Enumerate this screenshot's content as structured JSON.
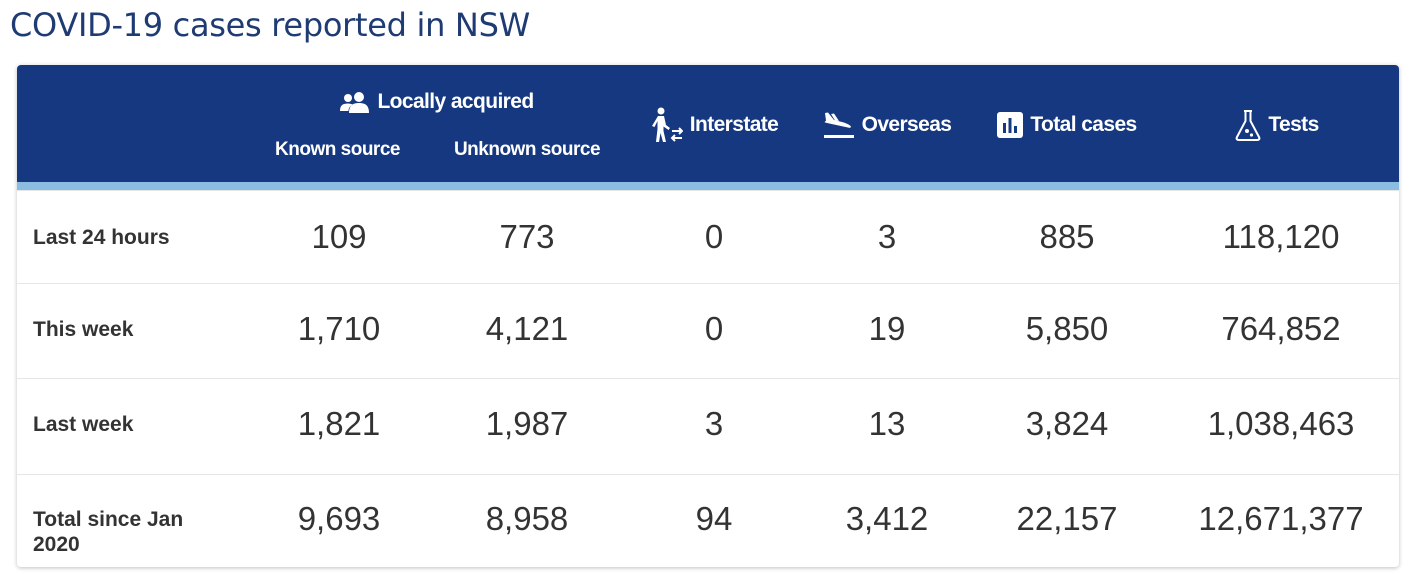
{
  "page": {
    "title": "COVID-19 cases reported in NSW"
  },
  "colors": {
    "header_bg": "#153880",
    "header_accent": "#8bbde3",
    "title": "#1f3b73"
  },
  "header": {
    "locally_acquired": {
      "label": "Locally acquired",
      "icon": "people-icon"
    },
    "known_source": "Known source",
    "unknown_source": "Unknown source",
    "interstate": {
      "label": "Interstate",
      "icon": "traveller-icon"
    },
    "overseas": {
      "label": "Overseas",
      "icon": "plane-landing-icon"
    },
    "total_cases": {
      "label": "Total cases",
      "icon": "bar-chart-icon"
    },
    "tests": {
      "label": "Tests",
      "icon": "flask-icon"
    }
  },
  "rows": [
    {
      "label": "Last 24 hours",
      "known": "109",
      "unknown": "773",
      "interstate": "0",
      "overseas": "3",
      "total": "885",
      "tests": "118,120"
    },
    {
      "label": "This week",
      "known": "1,710",
      "unknown": "4,121",
      "interstate": "0",
      "overseas": "19",
      "total": "5,850",
      "tests": "764,852"
    },
    {
      "label": "Last week",
      "known": "1,821",
      "unknown": "1,987",
      "interstate": "3",
      "overseas": "13",
      "total": "3,824",
      "tests": "1,038,463"
    },
    {
      "label": "Total since Jan 2020",
      "known": "9,693",
      "unknown": "8,958",
      "interstate": "94",
      "overseas": "3,412",
      "total": "22,157",
      "tests": "12,671,377"
    }
  ]
}
